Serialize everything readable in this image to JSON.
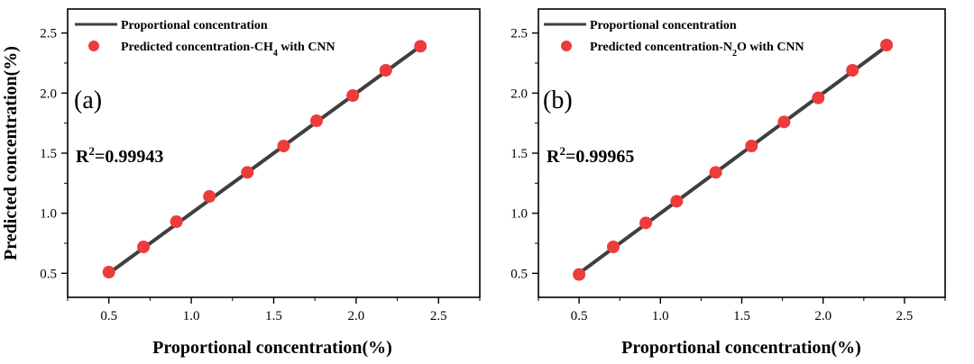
{
  "chart_data": [
    {
      "type": "scatter",
      "panel_label": "(a)",
      "xlabel": "Proportional concentration(%)",
      "ylabel": "Predicted concentration(%)",
      "xticks": [
        "0.5",
        "1.0",
        "1.5",
        "2.0",
        "2.5"
      ],
      "yticks": [
        "0.5",
        "1.0",
        "1.5",
        "2.0",
        "2.5"
      ],
      "xlim": [
        0.25,
        2.75
      ],
      "ylim": [
        0.3,
        2.7
      ],
      "r2": {
        "prefix": "R",
        "sup": "2",
        "value": "=0.99943"
      },
      "legend": {
        "line": "Proportional concentration",
        "marker": {
          "before": "Predicted concentration-CH",
          "sub": "4",
          "after": " with CNN"
        }
      },
      "fit_line": {
        "x": [
          0.5,
          2.4
        ],
        "y": [
          0.5,
          2.4
        ]
      },
      "series": [
        {
          "name": "Predicted concentration-CH4 with CNN",
          "x": [
            0.5,
            0.71,
            0.91,
            1.11,
            1.34,
            1.56,
            1.76,
            1.98,
            2.18,
            2.39
          ],
          "y": [
            0.51,
            0.72,
            0.93,
            1.14,
            1.34,
            1.56,
            1.77,
            1.98,
            2.19,
            2.39
          ]
        }
      ]
    },
    {
      "type": "scatter",
      "panel_label": "(b)",
      "xlabel": "Proportional concentration(%)",
      "ylabel": "",
      "xticks": [
        "0.5",
        "1.0",
        "1.5",
        "2.0",
        "2.5"
      ],
      "yticks": [
        "0.5",
        "1.0",
        "1.5",
        "2.0",
        "2.5"
      ],
      "xlim": [
        0.25,
        2.75
      ],
      "ylim": [
        0.3,
        2.7
      ],
      "r2": {
        "prefix": "R",
        "sup": "2",
        "value": "=0.99965"
      },
      "legend": {
        "line": "Proportional concentration",
        "marker": {
          "before": "Predicted concentration-N",
          "sub": "2",
          "after": "O with CNN"
        }
      },
      "fit_line": {
        "x": [
          0.5,
          2.4
        ],
        "y": [
          0.5,
          2.4
        ]
      },
      "series": [
        {
          "name": "Predicted concentration-N2O with CNN",
          "x": [
            0.5,
            0.71,
            0.91,
            1.1,
            1.34,
            1.56,
            1.76,
            1.97,
            2.18,
            2.39
          ],
          "y": [
            0.49,
            0.72,
            0.92,
            1.1,
            1.34,
            1.56,
            1.76,
            1.96,
            2.19,
            2.4
          ]
        }
      ]
    }
  ],
  "colors": {
    "marker": "#ee3b3b",
    "line": "#3f3f3f",
    "axis": "#000000"
  }
}
